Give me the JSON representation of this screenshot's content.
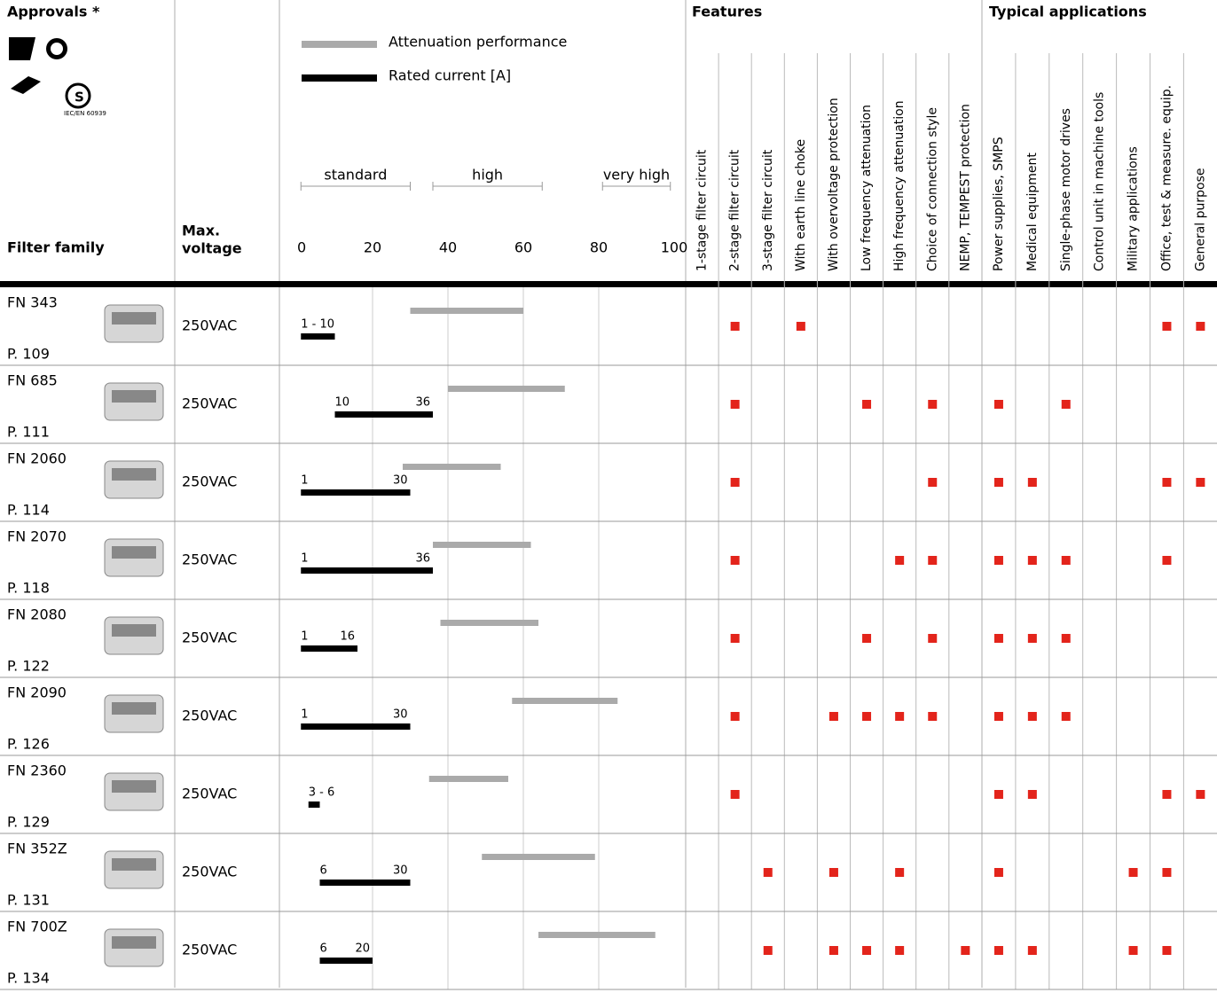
{
  "approvals": {
    "title": "Approvals *",
    "note": "IEC/EN 60939"
  },
  "headers": {
    "filter_family": "Filter family",
    "max_voltage": [
      "Max.",
      "voltage"
    ],
    "features": "Features",
    "applications": "Typical applications"
  },
  "chart_data": {
    "type": "range-bar",
    "legend": [
      {
        "name": "Attenuation performance",
        "color": "#aaaaaa"
      },
      {
        "name": "Rated current [A]",
        "color": "#000000"
      }
    ],
    "bands": [
      {
        "label": "standard",
        "range": [
          1,
          30
        ]
      },
      {
        "label": "high",
        "range": [
          36,
          65
        ]
      },
      {
        "label": "very high",
        "range": [
          81,
          99
        ]
      }
    ],
    "xlim": [
      0,
      100
    ],
    "xticks": [
      0,
      20,
      40,
      60,
      80,
      100
    ],
    "grid": true,
    "mark_color": "#e3241b"
  },
  "columns": {
    "features": [
      "1-stage filter circuit",
      "2-stage filter circuit",
      "3-stage filter circuit",
      "With earth line choke",
      "With overvoltage protection",
      "Low frequency attenuation",
      "High frequency attenuation",
      "Choice of connection style",
      "NEMP, TEMPEST protection"
    ],
    "applications": [
      "Power supplies, SMPS",
      "Medical equipment",
      "Single-phase motor drives",
      "Control unit in machine tools",
      "Military applications",
      "Office, test & measure. equip.",
      "General purpose"
    ]
  },
  "rows": [
    {
      "name": "FN 343",
      "page": "P. 109",
      "voltage": "250VAC",
      "attenuation": [
        30,
        60
      ],
      "current": [
        1,
        10
      ],
      "current_label": "1 - 10",
      "features": [
        false,
        true,
        false,
        true,
        false,
        false,
        false,
        false,
        false
      ],
      "applications": [
        false,
        false,
        false,
        false,
        false,
        true,
        true
      ]
    },
    {
      "name": "FN 685",
      "page": "P. 111",
      "voltage": "250VAC",
      "attenuation": [
        40,
        71
      ],
      "current": [
        10,
        36
      ],
      "features": [
        false,
        true,
        false,
        false,
        false,
        true,
        false,
        true,
        false
      ],
      "applications": [
        true,
        false,
        true,
        false,
        false,
        false,
        false
      ]
    },
    {
      "name": "FN 2060",
      "page": "P. 114",
      "voltage": "250VAC",
      "attenuation": [
        28,
        54
      ],
      "current": [
        1,
        30
      ],
      "features": [
        false,
        true,
        false,
        false,
        false,
        false,
        false,
        true,
        false
      ],
      "applications": [
        true,
        true,
        false,
        false,
        false,
        true,
        true
      ]
    },
    {
      "name": "FN 2070",
      "page": "P. 118",
      "voltage": "250VAC",
      "attenuation": [
        36,
        62
      ],
      "current": [
        1,
        36
      ],
      "features": [
        false,
        true,
        false,
        false,
        false,
        false,
        true,
        true,
        false
      ],
      "applications": [
        true,
        true,
        true,
        false,
        false,
        true,
        false
      ]
    },
    {
      "name": "FN 2080",
      "page": "P. 122",
      "voltage": "250VAC",
      "attenuation": [
        38,
        64
      ],
      "current": [
        1,
        16
      ],
      "features": [
        false,
        true,
        false,
        false,
        false,
        true,
        false,
        true,
        false
      ],
      "applications": [
        true,
        true,
        true,
        false,
        false,
        false,
        false
      ]
    },
    {
      "name": "FN 2090",
      "page": "P. 126",
      "voltage": "250VAC",
      "attenuation": [
        57,
        85
      ],
      "current": [
        1,
        30
      ],
      "features": [
        false,
        true,
        false,
        false,
        true,
        true,
        true,
        true,
        false
      ],
      "applications": [
        true,
        true,
        true,
        false,
        false,
        false,
        false
      ]
    },
    {
      "name": "FN 2360",
      "page": "P. 129",
      "voltage": "250VAC",
      "attenuation": [
        35,
        56
      ],
      "current": [
        3,
        6
      ],
      "current_label": "3 - 6",
      "features": [
        false,
        true,
        false,
        false,
        false,
        false,
        false,
        false,
        false
      ],
      "applications": [
        true,
        true,
        false,
        false,
        false,
        true,
        true
      ]
    },
    {
      "name": "FN 352Z",
      "page": "P. 131",
      "voltage": "250VAC",
      "attenuation": [
        49,
        79
      ],
      "current": [
        6,
        30
      ],
      "features": [
        false,
        false,
        true,
        false,
        true,
        false,
        true,
        false,
        false
      ],
      "applications": [
        true,
        false,
        false,
        false,
        true,
        true,
        false
      ]
    },
    {
      "name": "FN 700Z",
      "page": "P. 134",
      "voltage": "250VAC",
      "attenuation": [
        64,
        95
      ],
      "current": [
        6,
        20
      ],
      "features": [
        false,
        false,
        true,
        false,
        true,
        true,
        true,
        false,
        true
      ],
      "applications": [
        true,
        true,
        false,
        false,
        true,
        true,
        false
      ]
    }
  ]
}
